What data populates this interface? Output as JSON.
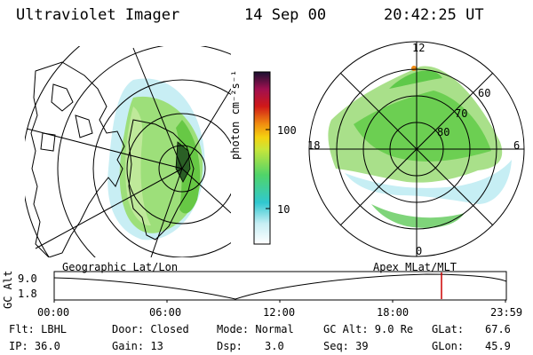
{
  "header": {
    "title": "Ultraviolet Imager",
    "date": "14 Sep 00",
    "time": "20:42:25 UT"
  },
  "colorbar": {
    "unit_label": "photon cm⁻²s⁻¹",
    "ticks": [
      "100",
      "10"
    ]
  },
  "polar": {
    "mlt_labels": {
      "top": "12",
      "left": "18",
      "right": "6",
      "bottom": "0"
    },
    "lat_labels": [
      "60",
      "70",
      "80"
    ]
  },
  "timeline": {
    "left_title": "Geographic Lat/Lon",
    "right_title": "Apex MLat/MLT",
    "axis_label": "GC Alt",
    "y_ticks": [
      "9.0",
      "1.8"
    ],
    "x_ticks": [
      "00:00",
      "06:00",
      "12:00",
      "18:00",
      "23:59"
    ],
    "marker_color": "#cc0000"
  },
  "info": {
    "filter": "Flt: LBHL",
    "ip": "IP: 36.0",
    "door": "Door: Closed",
    "gain": "Gain: 13",
    "mode": "Mode: Normal",
    "dsp_label": "Dsp:",
    "dsp_value": "3.0",
    "gc_alt": "GC Alt: 9.0 Re",
    "seq": "Seq: 39",
    "glat_label": "GLat:",
    "glat_value": "67.6",
    "glon_label": "GLon:",
    "glon_value": "45.9"
  }
}
